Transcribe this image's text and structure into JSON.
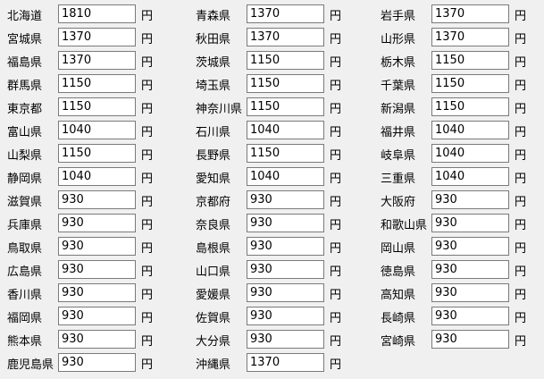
{
  "unit": "円",
  "fields": [
    {
      "label": "北海道",
      "value": "1810"
    },
    {
      "label": "青森県",
      "value": "1370"
    },
    {
      "label": "岩手県",
      "value": "1370"
    },
    {
      "label": "宮城県",
      "value": "1370"
    },
    {
      "label": "秋田県",
      "value": "1370"
    },
    {
      "label": "山形県",
      "value": "1370"
    },
    {
      "label": "福島県",
      "value": "1370"
    },
    {
      "label": "茨城県",
      "value": "1150"
    },
    {
      "label": "栃木県",
      "value": "1150"
    },
    {
      "label": "群馬県",
      "value": "1150"
    },
    {
      "label": "埼玉県",
      "value": "1150"
    },
    {
      "label": "千葉県",
      "value": "1150"
    },
    {
      "label": "東京都",
      "value": "1150"
    },
    {
      "label": "神奈川県",
      "value": "1150"
    },
    {
      "label": "新潟県",
      "value": "1150"
    },
    {
      "label": "富山県",
      "value": "1040"
    },
    {
      "label": "石川県",
      "value": "1040"
    },
    {
      "label": "福井県",
      "value": "1040"
    },
    {
      "label": "山梨県",
      "value": "1150"
    },
    {
      "label": "長野県",
      "value": "1150"
    },
    {
      "label": "岐阜県",
      "value": "1040"
    },
    {
      "label": "静岡県",
      "value": "1040"
    },
    {
      "label": "愛知県",
      "value": "1040"
    },
    {
      "label": "三重県",
      "value": "1040"
    },
    {
      "label": "滋賀県",
      "value": "930"
    },
    {
      "label": "京都府",
      "value": "930"
    },
    {
      "label": "大阪府",
      "value": "930"
    },
    {
      "label": "兵庫県",
      "value": "930"
    },
    {
      "label": "奈良県",
      "value": "930"
    },
    {
      "label": "和歌山県",
      "value": "930"
    },
    {
      "label": "鳥取県",
      "value": "930"
    },
    {
      "label": "島根県",
      "value": "930"
    },
    {
      "label": "岡山県",
      "value": "930"
    },
    {
      "label": "広島県",
      "value": "930"
    },
    {
      "label": "山口県",
      "value": "930"
    },
    {
      "label": "徳島県",
      "value": "930"
    },
    {
      "label": "香川県",
      "value": "930"
    },
    {
      "label": "愛媛県",
      "value": "930"
    },
    {
      "label": "高知県",
      "value": "930"
    },
    {
      "label": "福岡県",
      "value": "930"
    },
    {
      "label": "佐賀県",
      "value": "930"
    },
    {
      "label": "長崎県",
      "value": "930"
    },
    {
      "label": "熊本県",
      "value": "930"
    },
    {
      "label": "大分県",
      "value": "930"
    },
    {
      "label": "宮崎県",
      "value": "930"
    },
    {
      "label": "鹿児島県",
      "value": "930"
    },
    {
      "label": "沖縄県",
      "value": "1370"
    }
  ]
}
